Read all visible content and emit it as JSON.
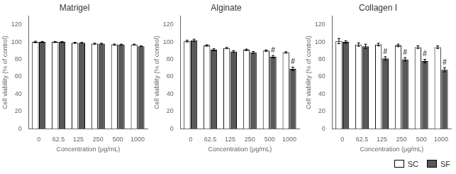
{
  "chart_data": [
    {
      "type": "bar",
      "title": "Matrigel",
      "categories": [
        "0",
        "62.5",
        "125",
        "250",
        "500",
        "1000"
      ],
      "xlabel": "Concentration (μg/mL)",
      "ylabel": "Cell viability (% of control)",
      "ylim": [
        0,
        130
      ],
      "yticks": [
        0,
        20,
        40,
        60,
        80,
        100,
        120
      ],
      "grid": false,
      "series": [
        {
          "name": "SC",
          "color": "#ffffff",
          "values": [
            100.0,
            100.0,
            99.0,
            98.0,
            97.0,
            97.0
          ],
          "errors": [
            0.8,
            0.6,
            0.6,
            0.6,
            0.6,
            0.5
          ]
        },
        {
          "name": "SF",
          "color": "#595959",
          "values": [
            100.0,
            100.0,
            99.0,
            98.0,
            97.0,
            95.0
          ],
          "errors": [
            0.6,
            0.5,
            0.5,
            0.5,
            0.5,
            0.5
          ]
        }
      ]
    },
    {
      "type": "bar",
      "title": "Alginate",
      "categories": [
        "0",
        "62.5",
        "125",
        "250",
        "500",
        "1000"
      ],
      "xlabel": "Concentration (μg/mL)",
      "ylabel": "Cell viability (% of control)",
      "ylim": [
        0,
        130
      ],
      "yticks": [
        0,
        20,
        40,
        60,
        80,
        100,
        120
      ],
      "grid": false,
      "series": [
        {
          "name": "SC",
          "color": "#ffffff",
          "values": [
            101.0,
            96.0,
            93.0,
            91.0,
            90.0,
            88.0
          ],
          "errors": [
            1.0,
            0.8,
            0.8,
            0.8,
            0.8,
            0.8
          ]
        },
        {
          "name": "SF",
          "color": "#595959",
          "values": [
            102.0,
            91.0,
            89.0,
            88.0,
            83.0,
            69.0
          ],
          "errors": [
            1.2,
            1.2,
            1.0,
            1.0,
            1.5,
            2.0
          ]
        }
      ],
      "annotations": [
        {
          "text": "#",
          "series": "SF",
          "category": "500"
        },
        {
          "text": "#",
          "series": "SF",
          "category": "1000"
        }
      ]
    },
    {
      "type": "bar",
      "title": "Collagen I",
      "categories": [
        "0",
        "62.5",
        "125",
        "250",
        "500",
        "1000"
      ],
      "xlabel": "Concentration (μg/mL)",
      "ylabel": "Cell viability (% of control)",
      "ylim": [
        0,
        130
      ],
      "yticks": [
        0,
        20,
        40,
        60,
        80,
        100,
        120
      ],
      "grid": false,
      "legend": "lower right",
      "series": [
        {
          "name": "SC",
          "color": "#ffffff",
          "values": [
            101.0,
            97.0,
            97.0,
            96.0,
            94.0,
            94.0
          ],
          "errors": [
            3.0,
            2.0,
            1.5,
            1.5,
            1.5,
            1.5
          ]
        },
        {
          "name": "SF",
          "color": "#595959",
          "values": [
            100.0,
            95.0,
            81.0,
            80.0,
            78.0,
            68.0
          ],
          "errors": [
            1.5,
            2.5,
            2.0,
            2.0,
            2.0,
            2.5
          ]
        }
      ],
      "annotations": [
        {
          "text": "#",
          "series": "SF",
          "category": "125"
        },
        {
          "text": "#",
          "series": "SF",
          "category": "250"
        },
        {
          "text": "#",
          "series": "SF",
          "category": "500"
        },
        {
          "text": "#",
          "series": "SF",
          "category": "1000"
        }
      ]
    }
  ]
}
